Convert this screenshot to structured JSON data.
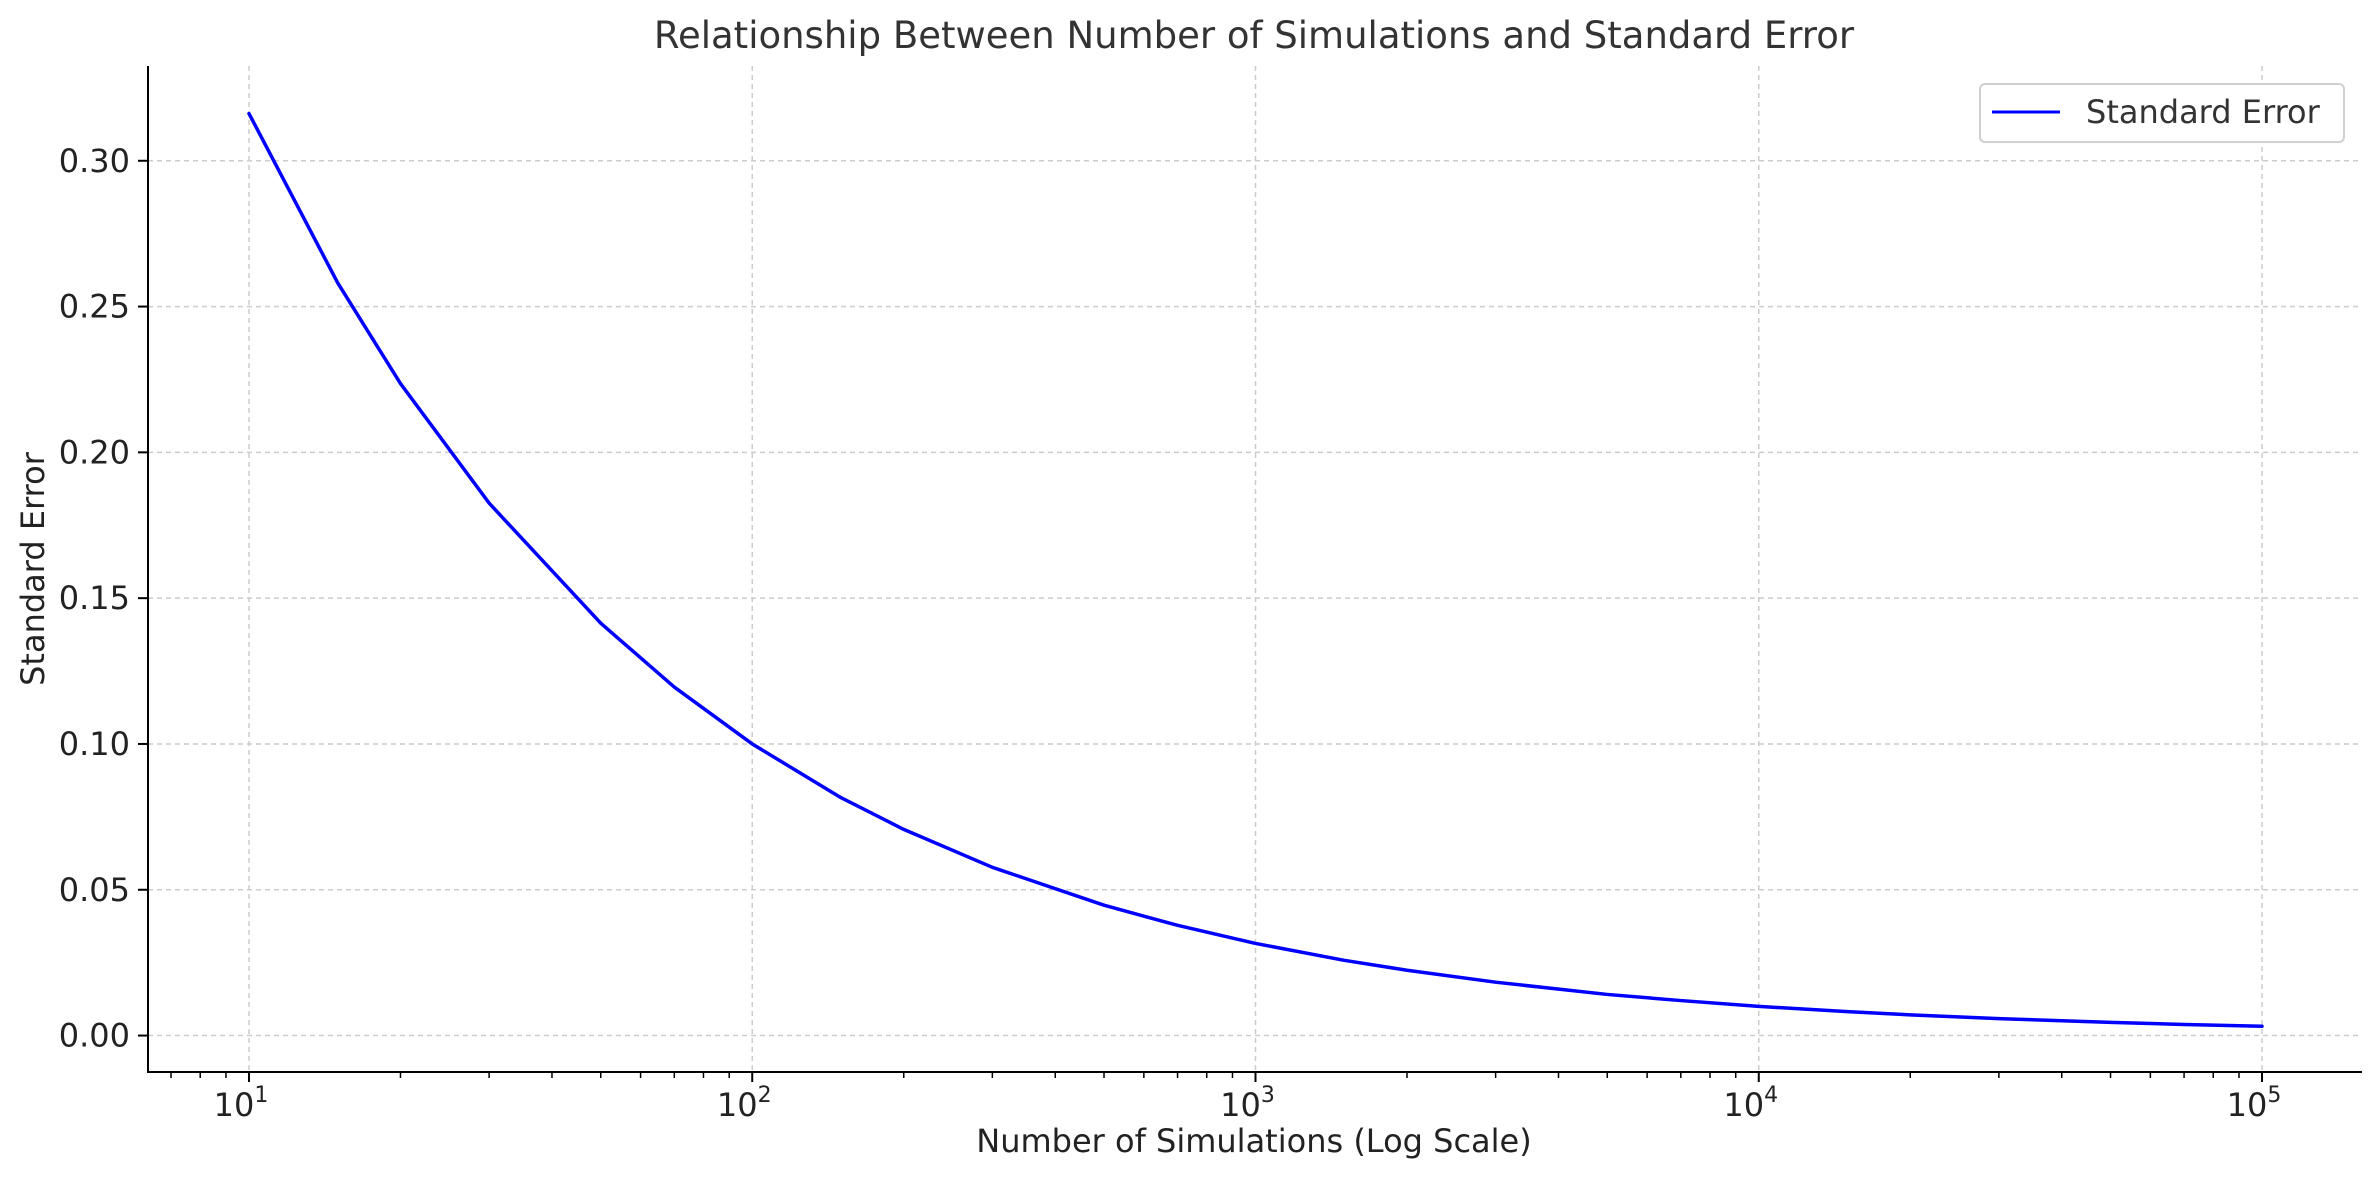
{
  "chart_data": {
    "type": "line",
    "title": "Relationship Between Number of Simulations and Standard Error",
    "xlabel": "Number of Simulations (Log Scale)",
    "ylabel": "Standard Error",
    "x_scale": "log",
    "xlim": [
      6.3,
      158000
    ],
    "ylim": [
      -0.0125,
      0.3325
    ],
    "x_ticks": [
      10,
      100,
      1000,
      10000,
      100000
    ],
    "x_tick_labels": [
      {
        "base": "10",
        "exp": "1"
      },
      {
        "base": "10",
        "exp": "2"
      },
      {
        "base": "10",
        "exp": "3"
      },
      {
        "base": "10",
        "exp": "4"
      },
      {
        "base": "10",
        "exp": "5"
      }
    ],
    "y_ticks": [
      0.0,
      0.05,
      0.1,
      0.15,
      0.2,
      0.25,
      0.3
    ],
    "y_tick_labels": [
      "0.00",
      "0.05",
      "0.10",
      "0.15",
      "0.20",
      "0.25",
      "0.30"
    ],
    "grid": true,
    "legend_position": "top-right",
    "series": [
      {
        "name": "Standard Error",
        "color": "#0000ff",
        "x": [
          10,
          15,
          20,
          30,
          50,
          70,
          100,
          150,
          200,
          300,
          500,
          700,
          1000,
          1500,
          2000,
          3000,
          5000,
          7000,
          10000,
          15000,
          20000,
          30000,
          50000,
          70000,
          100000
        ],
        "y": [
          0.3162,
          0.2582,
          0.2236,
          0.1826,
          0.1414,
          0.1195,
          0.1,
          0.0816,
          0.0707,
          0.0577,
          0.0447,
          0.0378,
          0.0316,
          0.0258,
          0.0224,
          0.0183,
          0.0141,
          0.012,
          0.01,
          0.0082,
          0.0071,
          0.0058,
          0.0045,
          0.0038,
          0.0032
        ]
      }
    ]
  }
}
